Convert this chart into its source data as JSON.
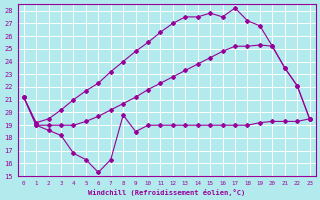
{
  "background_color": "#b2eaed",
  "grid_color": "#ffffff",
  "line_color": "#990099",
  "xlabel": "Windchill (Refroidissement éolien,°C)",
  "xlim": [
    -0.5,
    23.5
  ],
  "ylim": [
    15,
    28.5
  ],
  "yticks": [
    15,
    16,
    17,
    18,
    19,
    20,
    21,
    22,
    23,
    24,
    25,
    26,
    27,
    28
  ],
  "xticks": [
    0,
    1,
    2,
    3,
    4,
    5,
    6,
    7,
    8,
    9,
    10,
    11,
    12,
    13,
    14,
    15,
    16,
    17,
    18,
    19,
    20,
    21,
    22,
    23
  ],
  "curve1_x": [
    0,
    1,
    2,
    3,
    4,
    5,
    6,
    7,
    8,
    9,
    10,
    11,
    12,
    13,
    14,
    15,
    16,
    17,
    18,
    19,
    20,
    21,
    22,
    23
  ],
  "curve1_y": [
    21.2,
    19.0,
    18.6,
    18.2,
    16.8,
    16.3,
    15.3,
    16.3,
    19.8,
    18.5,
    19.0,
    19.0,
    19.0,
    19.0,
    19.0,
    19.0,
    19.0,
    19.0,
    19.0,
    19.2,
    19.3,
    19.3,
    19.3,
    19.5
  ],
  "curve2_x": [
    0,
    1,
    2,
    3,
    4,
    5,
    6,
    7,
    8,
    9,
    10,
    11,
    12,
    13,
    14,
    15,
    16,
    17,
    18,
    19,
    20,
    21,
    22,
    23
  ],
  "curve2_y": [
    21.2,
    19.2,
    19.5,
    20.2,
    21.0,
    21.7,
    22.3,
    23.2,
    24.0,
    24.8,
    25.5,
    26.3,
    27.0,
    27.5,
    27.5,
    27.8,
    27.5,
    28.2,
    27.2,
    26.8,
    25.2,
    23.5,
    22.1,
    19.5
  ],
  "curve3_x": [
    0,
    1,
    2,
    3,
    4,
    5,
    6,
    7,
    8,
    9,
    10,
    11,
    12,
    13,
    14,
    15,
    16,
    17,
    18,
    19,
    20,
    21,
    22,
    23
  ],
  "curve3_y": [
    21.2,
    19.0,
    19.0,
    19.0,
    19.0,
    19.3,
    19.7,
    20.2,
    20.7,
    21.2,
    21.8,
    22.3,
    22.8,
    23.3,
    23.8,
    24.3,
    24.8,
    25.2,
    25.2,
    25.3,
    25.2,
    23.5,
    22.1,
    19.5
  ]
}
